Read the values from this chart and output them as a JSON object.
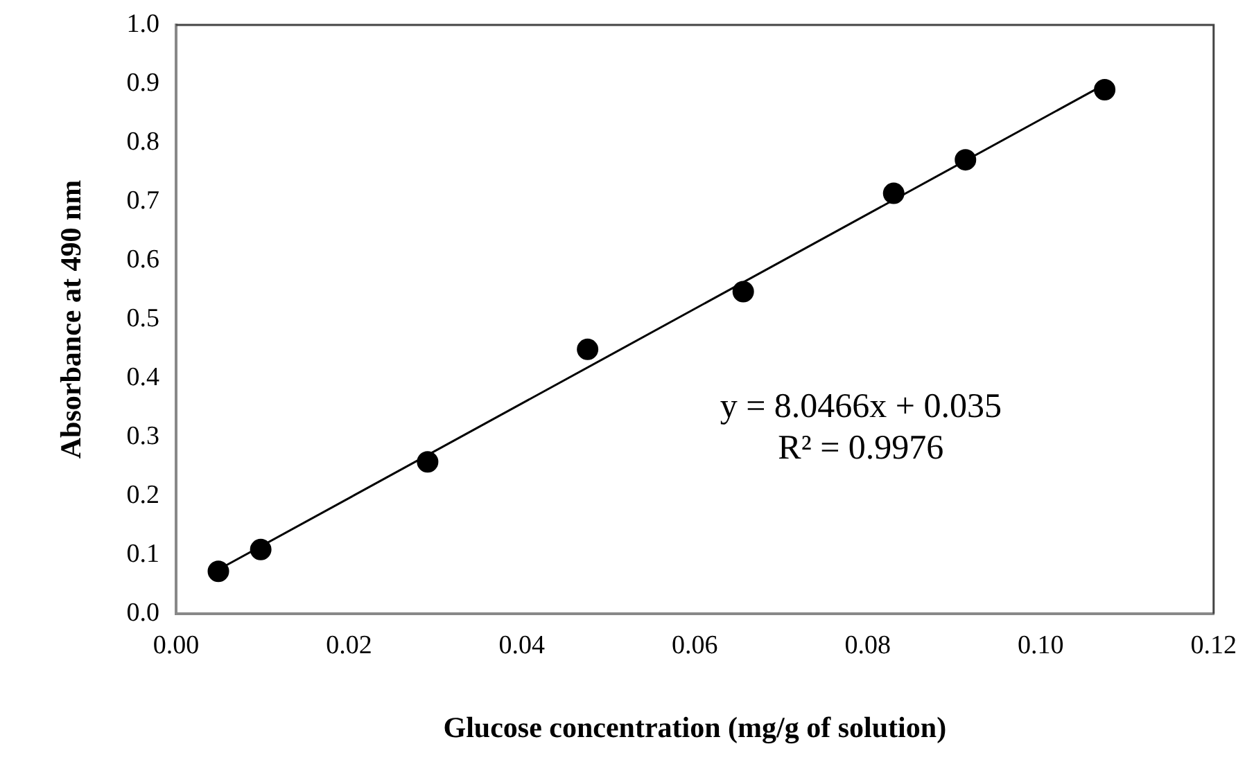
{
  "chart_data": {
    "type": "scatter",
    "xlabel": "Glucose concentration (mg/g of solution)",
    "ylabel": "Absorbance at 490 nm",
    "xlim": [
      0,
      0.12
    ],
    "xticks": [
      {
        "value": 0,
        "label": "0.00"
      },
      0.02,
      0.04,
      0.06,
      0.08,
      {
        "value": 0.1,
        "label": "0.10"
      },
      0.12
    ],
    "ylim": [
      0,
      1
    ],
    "yticks": [
      {
        "value": 0,
        "label": "0.0"
      },
      0.1,
      0.2,
      0.3,
      0.4,
      0.5,
      0.6,
      0.7,
      0.8,
      0.9,
      {
        "value": 1,
        "label": "1.0"
      }
    ],
    "series": [
      {
        "color": "#000000",
        "marker": "circle",
        "x": [
          0.0049,
          0.0098,
          0.0291,
          0.0476,
          0.0656,
          0.083,
          0.0913,
          0.1074
        ],
        "values": [
          0.072,
          0.109,
          0.258,
          0.449,
          0.547,
          0.714,
          0.771,
          0.89
        ]
      },
      {
        "type": "line",
        "color": "#000000",
        "marker": "none",
        "line_style": "solid",
        "x": [
          0.0049,
          0.1074
        ],
        "values": [
          0.075,
          0.899
        ]
      }
    ],
    "annotations": [
      "y = 8.0466x + 0.035",
      "R² = 0.9976"
    ],
    "grid": false,
    "legend": false
  }
}
